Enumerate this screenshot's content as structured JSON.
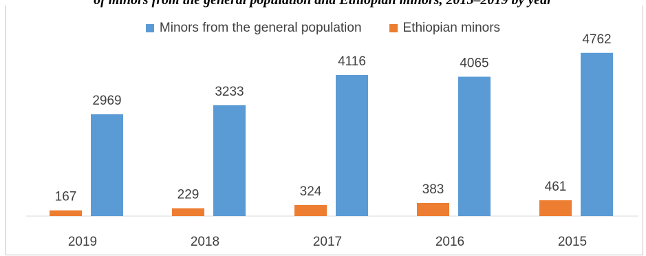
{
  "title_partial": "of minors from the general population and Ethiopian minors, 2015–2019 by year",
  "chart_data": {
    "type": "bar",
    "categories": [
      "2019",
      "2018",
      "2017",
      "2016",
      "2015"
    ],
    "series": [
      {
        "name": "Ethiopian minors",
        "values": [
          167,
          229,
          324,
          383,
          461
        ],
        "color": "#ed7d31"
      },
      {
        "name": "Minors from the general population",
        "values": [
          2969,
          3233,
          4116,
          4065,
          4762
        ],
        "color": "#5b9bd5"
      }
    ],
    "legend_order": [
      1,
      0
    ],
    "legend_position": "top",
    "ylim": [
      0,
      5500
    ],
    "grid": false,
    "data_labels": true
  }
}
